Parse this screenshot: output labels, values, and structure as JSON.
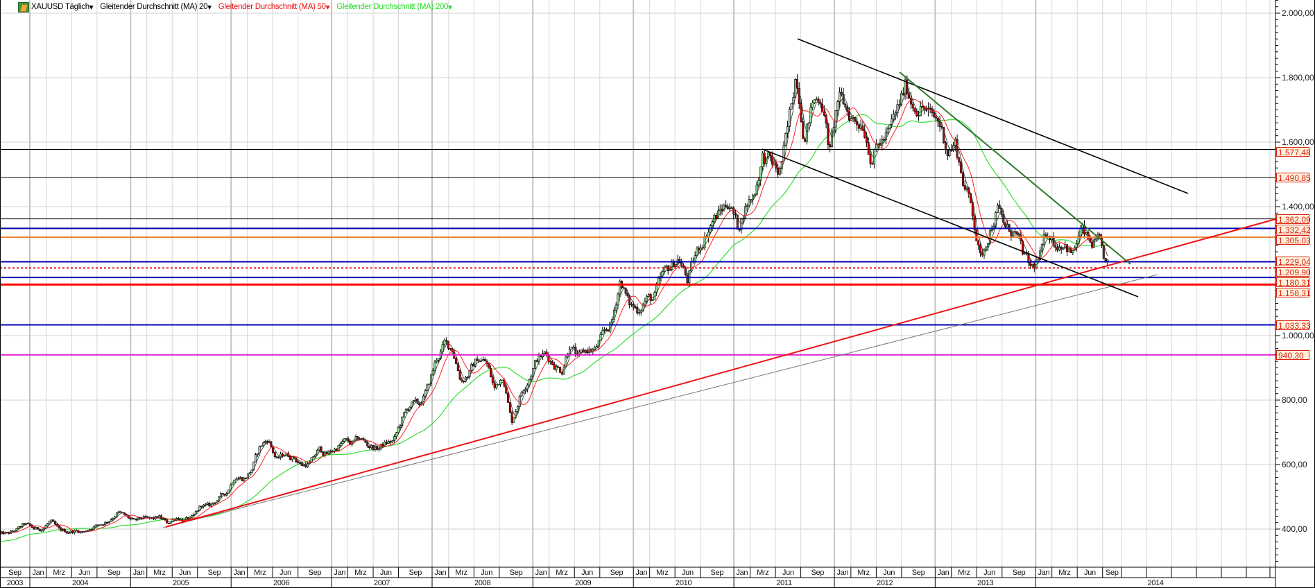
{
  "header": {
    "symbol": "XAUUSD Täglich",
    "ma20_label": "Gleitender Durchschnitt (MA) 20",
    "ma50_label": "Gleitender Durchschnitt (MA) 50",
    "ma200_label": "Gleitender Durchschnitt (MA) 200",
    "dropdown_glyph": "▾",
    "icon": "gold-bar-icon"
  },
  "colors": {
    "ma20": "#333333",
    "ma50": "#ff2020",
    "ma200": "#33dd33",
    "up_candle": "#8fe08f",
    "down_candle": "#c00000",
    "level_label_border": "#dd2211",
    "level_label_bg": "#fdf2dc"
  },
  "chart_data": {
    "type": "candlestick",
    "instrument": "XAUUSD",
    "interval": "Täglich",
    "y_axis": {
      "range": [
        290,
        2040
      ],
      "ticks": [
        "2.000,00",
        "1.800,00",
        "1.600,00",
        "1.400,00",
        "1.000,00",
        "800,00",
        "600,00",
        "400,00"
      ],
      "tick_values": [
        2000,
        1800,
        1600,
        1400,
        1000,
        800,
        600,
        400
      ],
      "position": "right"
    },
    "x_axis": {
      "range": [
        "2003-09",
        "2015-09"
      ],
      "months": [
        {
          "label": "Sep",
          "date": "2003-09"
        },
        {
          "label": "Jan",
          "date": "2004-01"
        },
        {
          "label": "Mrz",
          "date": "2004-03"
        },
        {
          "label": "Jun",
          "date": "2004-06"
        },
        {
          "label": "Sep",
          "date": "2004-09"
        },
        {
          "label": "Jan",
          "date": "2005-01"
        },
        {
          "label": "Mrz",
          "date": "2005-03"
        },
        {
          "label": "Jun",
          "date": "2005-06"
        },
        {
          "label": "Sep",
          "date": "2005-09"
        },
        {
          "label": "Jan",
          "date": "2006-01"
        },
        {
          "label": "Mrz",
          "date": "2006-03"
        },
        {
          "label": "Jun",
          "date": "2006-06"
        },
        {
          "label": "Sep",
          "date": "2006-09"
        },
        {
          "label": "Jan",
          "date": "2007-01"
        },
        {
          "label": "Mrz",
          "date": "2007-03"
        },
        {
          "label": "Jun",
          "date": "2007-06"
        },
        {
          "label": "Sep",
          "date": "2007-09"
        },
        {
          "label": "Jan",
          "date": "2008-01"
        },
        {
          "label": "Mrz",
          "date": "2008-03"
        },
        {
          "label": "Jun",
          "date": "2008-06"
        },
        {
          "label": "Sep",
          "date": "2008-09"
        },
        {
          "label": "Jan",
          "date": "2009-01"
        },
        {
          "label": "Mrz",
          "date": "2009-03"
        },
        {
          "label": "Jun",
          "date": "2009-06"
        },
        {
          "label": "Sep",
          "date": "2009-09"
        },
        {
          "label": "Jan",
          "date": "2010-01"
        },
        {
          "label": "Mrz",
          "date": "2010-03"
        },
        {
          "label": "Jun",
          "date": "2010-06"
        },
        {
          "label": "Sep",
          "date": "2010-09"
        },
        {
          "label": "Jan",
          "date": "2011-01"
        },
        {
          "label": "Mrz",
          "date": "2011-03"
        },
        {
          "label": "Jun",
          "date": "2011-06"
        },
        {
          "label": "Sep",
          "date": "2011-09"
        },
        {
          "label": "Jan",
          "date": "2012-01"
        },
        {
          "label": "Mrz",
          "date": "2012-03"
        },
        {
          "label": "Jun",
          "date": "2012-06"
        },
        {
          "label": "Sep",
          "date": "2012-09"
        },
        {
          "label": "Jan",
          "date": "2013-01"
        },
        {
          "label": "Mrz",
          "date": "2013-03"
        },
        {
          "label": "Jun",
          "date": "2013-06"
        },
        {
          "label": "Sep",
          "date": "2013-09"
        },
        {
          "label": "Jan",
          "date": "2014-01"
        },
        {
          "label": "Mrz",
          "date": "2014-03"
        },
        {
          "label": "Jun",
          "date": "2014-06"
        },
        {
          "label": "Sep",
          "date": "2014-09"
        }
      ],
      "years": [
        "2003",
        "2004",
        "2005",
        "2006",
        "2007",
        "2008",
        "2009",
        "2010",
        "2011",
        "2012",
        "2013",
        "2014"
      ]
    },
    "monthly_close_approx": {
      "start": "2003-09",
      "values": [
        385,
        385,
        398,
        416,
        400,
        400,
        425,
        395,
        392,
        395,
        391,
        407,
        415,
        428,
        453,
        438,
        422,
        434,
        428,
        436,
        417,
        437,
        429,
        433,
        473,
        470,
        495,
        513,
        568,
        556,
        582,
        654,
        680,
        614,
        633,
        624,
        599,
        604,
        646,
        632,
        650,
        672,
        663,
        681,
        659,
        650,
        665,
        673,
        743,
        789,
        783,
        834,
        923,
        972,
        960,
        863,
        885,
        930,
        918,
        833,
        884,
        730,
        815,
        870,
        928,
        942,
        917,
        891,
        979,
        926,
        954,
        955,
        1001,
        1040,
        1179,
        1096,
        1081,
        1116,
        1113,
        1180,
        1212,
        1244,
        1169,
        1248,
        1307,
        1357,
        1386,
        1421,
        1332,
        1410,
        1439,
        1556,
        1536,
        1500,
        1628,
        1826,
        1620,
        1722,
        1746,
        1565,
        1737,
        1696,
        1668,
        1664,
        1558,
        1598,
        1622,
        1690,
        1772,
        1719,
        1714,
        1675,
        1663,
        1578,
        1595,
        1472,
        1393,
        1234,
        1323,
        1396,
        1327,
        1323,
        1253,
        1202,
        1240,
        1326,
        1284,
        1295,
        1250,
        1327,
        1282,
        1287,
        1215
      ]
    },
    "moving_averages": [
      {
        "name": "Gleitender Durchschnitt (MA) 20",
        "period": 20,
        "color": "#333333"
      },
      {
        "name": "Gleitender Durchschnitt (MA) 50",
        "period": 50,
        "color": "#ff2020"
      },
      {
        "name": "Gleitender Durchschnitt (MA) 200",
        "period": 200,
        "color": "#33dd33"
      }
    ],
    "levels": [
      {
        "value": 1577.48,
        "label": "1.577,48",
        "color": "#000000",
        "style": "solid"
      },
      {
        "value": 1490.85,
        "label": "1.490,85",
        "color": "#000000",
        "style": "solid"
      },
      {
        "value": 1362.09,
        "label": "1.362,09",
        "color": "#000000",
        "style": "solid"
      },
      {
        "value": 1332.42,
        "label": "1.332,42",
        "color": "#0000b4",
        "style": "solid"
      },
      {
        "value": 1305.03,
        "label": "1.305,03",
        "color": "#f08030",
        "style": "solid"
      },
      {
        "value": 1229.04,
        "label": "1.229,04",
        "color": "#0000b4",
        "style": "solid"
      },
      {
        "value": 1209.9,
        "label": "1.209,90",
        "color": "#e01010",
        "style": "dotted"
      },
      {
        "value": 1180.31,
        "label": "1.180,31",
        "color": "#0000b4",
        "style": "solid"
      },
      {
        "value": 1158.31,
        "label": "1.158,31",
        "color": "#ff0000",
        "style": "thick"
      },
      {
        "value": 1033.33,
        "label": "1.033,33",
        "color": "#0000b4",
        "style": "solid"
      },
      {
        "value": 940.3,
        "label": "940,30",
        "color": "#e020d0",
        "style": "solid"
      }
    ],
    "grid": true,
    "legend": "top-left"
  }
}
